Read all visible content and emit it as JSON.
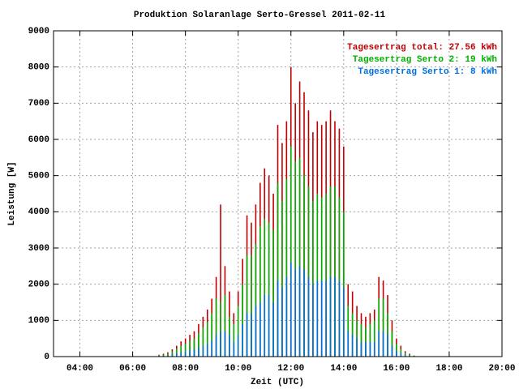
{
  "chart_data": {
    "type": "impulse",
    "title": "Produktion Solaranlage Serto-Gressel 2011-02-11",
    "xlabel": "Zeit (UTC)",
    "ylabel": "Leistung [W]",
    "xlim": [
      3,
      20
    ],
    "ylim": [
      0,
      9000
    ],
    "xticks": [
      {
        "value": 4,
        "label": "04:00"
      },
      {
        "value": 6,
        "label": "06:00"
      },
      {
        "value": 8,
        "label": "08:00"
      },
      {
        "value": 10,
        "label": "10:00"
      },
      {
        "value": 12,
        "label": "12:00"
      },
      {
        "value": 14,
        "label": "14:00"
      },
      {
        "value": 16,
        "label": "16:00"
      },
      {
        "value": 18,
        "label": "18:00"
      },
      {
        "value": 20,
        "label": "20:00"
      }
    ],
    "yticks": [
      0,
      1000,
      2000,
      3000,
      4000,
      5000,
      6000,
      7000,
      8000,
      9000
    ],
    "grid": true,
    "legend": "top-right",
    "x": [
      7,
      7.1667,
      7.3333,
      7.5,
      7.6667,
      7.8333,
      8,
      8.1667,
      8.3333,
      8.5,
      8.6667,
      8.8333,
      9,
      9.1667,
      9.3333,
      9.5,
      9.6667,
      9.8333,
      10,
      10.1667,
      10.3333,
      10.5,
      10.6667,
      10.8333,
      11,
      11.1667,
      11.3333,
      11.5,
      11.6667,
      11.8333,
      12,
      12.1667,
      12.3333,
      12.5,
      12.6667,
      12.8333,
      13,
      13.1667,
      13.3333,
      13.5,
      13.6667,
      13.8333,
      14,
      14.1667,
      14.3333,
      14.5,
      14.6667,
      14.8333,
      15,
      15.1667,
      15.3333,
      15.5,
      15.6667,
      15.8333,
      16,
      16.1667,
      16.3333,
      16.5,
      16.6667
    ],
    "series": [
      {
        "name": "Tagesertrag total: 27.56 kWh",
        "color": "#c00000",
        "values": [
          50,
          80,
          120,
          200,
          300,
          420,
          500,
          600,
          700,
          900,
          1100,
          1300,
          1600,
          2200,
          4200,
          2500,
          1800,
          1200,
          1800,
          2700,
          3900,
          3700,
          4200,
          4800,
          5200,
          5000,
          4500,
          6400,
          5900,
          6500,
          8000,
          7000,
          7600,
          7300,
          6800,
          6200,
          6500,
          6400,
          6500,
          6800,
          6500,
          6300,
          5800,
          2000,
          1800,
          1400,
          1200,
          1100,
          1200,
          1300,
          2200,
          2100,
          1700,
          1000,
          500,
          300,
          150,
          80,
          30
        ]
      },
      {
        "name": "Tagesertrag Serto 2: 19 kWh",
        "color": "#00b000",
        "values": [
          35,
          55,
          85,
          140,
          210,
          300,
          360,
          430,
          500,
          650,
          800,
          950,
          1200,
          1600,
          1500,
          1700,
          1100,
          900,
          1400,
          2000,
          2800,
          2800,
          3100,
          3600,
          3800,
          3700,
          3500,
          4800,
          4300,
          4900,
          5800,
          5400,
          5500,
          5000,
          4700,
          4300,
          4500,
          4400,
          4500,
          4700,
          4700,
          4400,
          4000,
          1400,
          1200,
          1000,
          900,
          800,
          900,
          1000,
          1600,
          1600,
          1200,
          700,
          350,
          200,
          100,
          55,
          20
        ]
      },
      {
        "name": "Tagesertrag Serto 1: 8 kWh",
        "color": "#0070e0",
        "values": [
          15,
          25,
          35,
          60,
          90,
          120,
          140,
          170,
          200,
          250,
          300,
          350,
          450,
          600,
          700,
          700,
          600,
          400,
          600,
          900,
          1200,
          1200,
          1400,
          1500,
          1700,
          1700,
          1500,
          2100,
          1900,
          2200,
          2600,
          2400,
          2500,
          2400,
          2200,
          2000,
          2100,
          2100,
          2100,
          2200,
          2200,
          2100,
          1900,
          700,
          600,
          500,
          400,
          400,
          400,
          400,
          700,
          700,
          600,
          300,
          150,
          100,
          50,
          25,
          10
        ]
      }
    ]
  }
}
